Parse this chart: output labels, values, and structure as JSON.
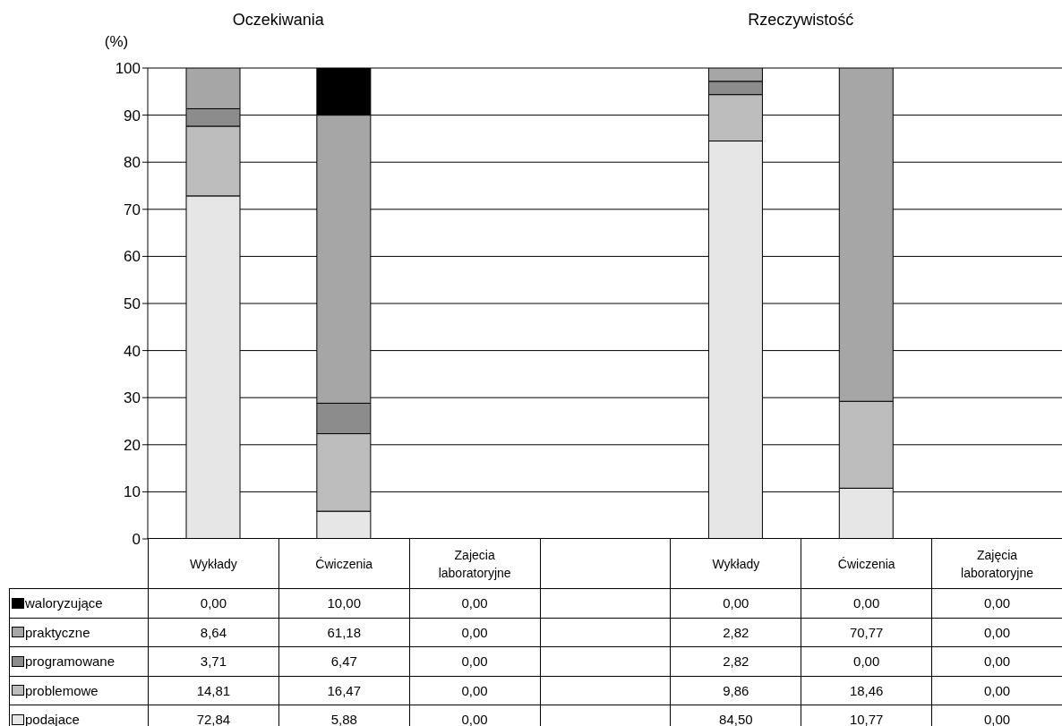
{
  "chart_data": {
    "type": "bar",
    "stacked": true,
    "annotations": [
      "Oczekiwania",
      "Rzeczywistość"
    ],
    "ylabel": "(%)",
    "categories": [
      "Wykłady",
      "Ćwiczenia",
      "Zajecia laboratoryjne",
      null,
      "Wykłady",
      "Ćwiczenia",
      "Zajęcia laboratoryjne"
    ],
    "series": [
      {
        "name": "podajace",
        "color": "#e6e6e6",
        "values": [
          72.84,
          5.88,
          0,
          null,
          84.5,
          10.77,
          0
        ],
        "value_labels": [
          "72,84",
          "5,88",
          "0,00",
          null,
          "84,50",
          "10,77",
          "0,00"
        ]
      },
      {
        "name": "problemowe",
        "color": "#bdbdbd",
        "values": [
          14.81,
          16.47,
          0,
          null,
          9.86,
          18.46,
          0
        ],
        "value_labels": [
          "14,81",
          "16,47",
          "0,00",
          null,
          "9,86",
          "18,46",
          "0,00"
        ]
      },
      {
        "name": "programowane",
        "color": "#8c8c8c",
        "values": [
          3.71,
          6.47,
          0,
          null,
          2.82,
          0,
          0
        ],
        "value_labels": [
          "3,71",
          "6,47",
          "0,00",
          null,
          "2,82",
          "0,00",
          "0,00"
        ]
      },
      {
        "name": "praktyczne",
        "color": "#a6a6a6",
        "values": [
          8.64,
          61.18,
          0,
          null,
          2.82,
          70.77,
          0
        ],
        "value_labels": [
          "8,64",
          "61,18",
          "0,00",
          null,
          "2,82",
          "70,77",
          "0,00"
        ]
      },
      {
        "name": "waloryzujące",
        "color": "#000000",
        "values": [
          0,
          10,
          0,
          null,
          0,
          0,
          0
        ],
        "value_labels": [
          "0,00",
          "10,00",
          "0,00",
          null,
          "0,00",
          "0,00",
          "0,00"
        ]
      }
    ],
    "ylim": [
      0,
      100
    ],
    "yticks": [
      0,
      10,
      20,
      30,
      40,
      50,
      60,
      70,
      80,
      90,
      100
    ],
    "grid": "y",
    "legend": "bottom left"
  }
}
